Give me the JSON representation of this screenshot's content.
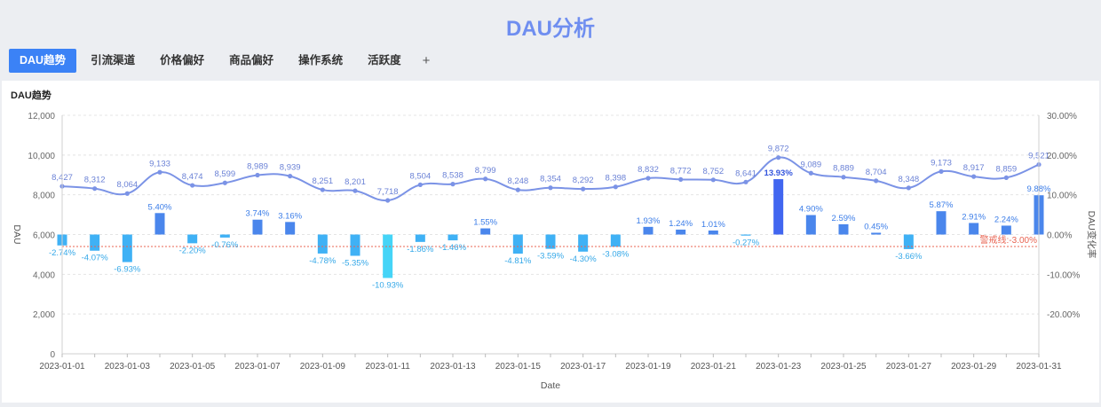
{
  "page": {
    "title": "DAU分析"
  },
  "tabs": [
    {
      "label": "DAU趋势",
      "active": true
    },
    {
      "label": "引流渠道",
      "active": false
    },
    {
      "label": "价格偏好",
      "active": false
    },
    {
      "label": "商品偏好",
      "active": false
    },
    {
      "label": "操作系统",
      "active": false
    },
    {
      "label": "活跃度",
      "active": false
    }
  ],
  "add_tab_label": "+",
  "panel": {
    "title": "DAU趋势"
  },
  "colors": {
    "title": "#6f8ef0",
    "tab_active": "#3b82f6",
    "line": "#7b93e6",
    "bar_positive": "#4a86ec",
    "bar_negative": "#3fb1f5",
    "bar_min": "#45d4f7",
    "bar_max": "#4166f0",
    "threshold": "#e86452"
  },
  "chart_data": {
    "type": "bar+line",
    "xlabel": "Date",
    "ylabel_left": "DAU",
    "ylabel_right": "DAU变化率",
    "ylim_left": [
      0,
      12000
    ],
    "ylim_right": [
      -0.3,
      0.3
    ],
    "left_ticks": [
      "0",
      "2,000",
      "4,000",
      "6,000",
      "8,000",
      "10,000",
      "12,000"
    ],
    "right_ticks": [
      "-20.00%",
      "-10.00%",
      "0.00%",
      "10.00%",
      "20.00%",
      "30.00%"
    ],
    "x_tick_labels": [
      "2023-01-01",
      "2023-01-03",
      "2023-01-05",
      "2023-01-07",
      "2023-01-09",
      "2023-01-11",
      "2023-01-13",
      "2023-01-15",
      "2023-01-17",
      "2023-01-19",
      "2023-01-21",
      "2023-01-23",
      "2023-01-25",
      "2023-01-27",
      "2023-01-29",
      "2023-01-31"
    ],
    "dates": [
      "2023-01-01",
      "2023-01-02",
      "2023-01-03",
      "2023-01-04",
      "2023-01-05",
      "2023-01-06",
      "2023-01-07",
      "2023-01-08",
      "2023-01-09",
      "2023-01-10",
      "2023-01-11",
      "2023-01-12",
      "2023-01-13",
      "2023-01-14",
      "2023-01-15",
      "2023-01-16",
      "2023-01-17",
      "2023-01-18",
      "2023-01-19",
      "2023-01-20",
      "2023-01-21",
      "2023-01-22",
      "2023-01-23",
      "2023-01-24",
      "2023-01-25",
      "2023-01-26",
      "2023-01-27",
      "2023-01-28",
      "2023-01-29",
      "2023-01-30",
      "2023-01-31"
    ],
    "dau": [
      8427,
      8312,
      8064,
      9133,
      8474,
      8599,
      8989,
      8939,
      8251,
      8201,
      7718,
      8504,
      8538,
      8799,
      8248,
      8354,
      8292,
      8398,
      8832,
      8772,
      8752,
      8641,
      9872,
      9089,
      8889,
      8704,
      8348,
      9173,
      8917,
      8859,
      9521
    ],
    "dau_labels": [
      "8,427",
      "8,312",
      "8,064",
      "9,133",
      "8,474",
      "8,599",
      "8,989",
      "8,939",
      "8,251",
      "8,201",
      "7,718",
      "8,504",
      "8,538",
      "8,799",
      "8,248",
      "8,354",
      "8,292",
      "8,398",
      "8,832",
      "8,772",
      "8,752",
      "8,641",
      "9,872",
      "9,089",
      "8,889",
      "8,704",
      "8,348",
      "9,173",
      "8,917",
      "8,859",
      "9,521"
    ],
    "change_rate": [
      -0.0274,
      -0.0407,
      -0.0693,
      0.054,
      -0.022,
      -0.0076,
      0.0374,
      0.0316,
      -0.0478,
      -0.0535,
      -0.1093,
      -0.0186,
      -0.0146,
      0.0155,
      -0.0481,
      -0.0359,
      -0.043,
      -0.0308,
      0.0193,
      0.0124,
      0.0101,
      -0.0027,
      0.1393,
      0.049,
      0.0259,
      0.0045,
      -0.0366,
      0.0587,
      0.0291,
      0.0224,
      0.0988
    ],
    "change_labels": [
      "-2.74%",
      "-4.07%",
      "-6.93%",
      "5.40%",
      "-2.20%",
      "-0.76%",
      "3.74%",
      "3.16%",
      "-4.78%",
      "-5.35%",
      "-10.93%",
      "-1.86%",
      "-1.46%",
      "1.55%",
      "-4.81%",
      "-3.59%",
      "-4.30%",
      "-3.08%",
      "1.93%",
      "1.24%",
      "1.01%",
      "-0.27%",
      "13.93%",
      "4.90%",
      "2.59%",
      "0.45%",
      "-3.66%",
      "5.87%",
      "2.91%",
      "2.24%",
      "9.88%"
    ],
    "threshold": {
      "value": -0.03,
      "label": "警戒线:-3.00%"
    },
    "grid": true
  }
}
